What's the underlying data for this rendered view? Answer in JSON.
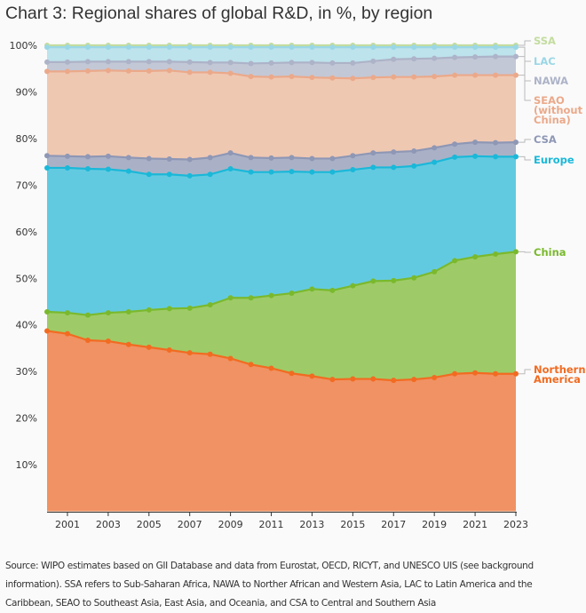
{
  "title": "Chart 3: Regional shares of global R&D, in %, by region",
  "source": "Source: WIPO estimates based on GII Database and data from Eurostat, OECD, RICYT, and UNESCO UIS (see background information). SSA refers to Sub-Saharan Africa, NAWA to Norther African and Western Asia, LAC to Latin America and the Caribbean, SEAO to Southeast Asia, East Asia, and Oceania, and CSA to Central and Southern Asia",
  "chart_data": {
    "type": "area",
    "stacked": true,
    "title": "Chart 3: Regional shares of global R&D, in %, by region",
    "xlabel": "",
    "ylabel": "",
    "ylim": [
      0,
      100
    ],
    "xlim": [
      2000,
      2023
    ],
    "y_ticks": [
      "10%",
      "20%",
      "30%",
      "40%",
      "50%",
      "60%",
      "70%",
      "80%",
      "90%",
      "100%"
    ],
    "x_ticks": [
      "2001",
      "2003",
      "2005",
      "2007",
      "2009",
      "2011",
      "2013",
      "2015",
      "2017",
      "2019",
      "2021",
      "2023"
    ],
    "x": [
      2000,
      2001,
      2002,
      2003,
      2004,
      2005,
      2006,
      2007,
      2008,
      2009,
      2010,
      2011,
      2012,
      2013,
      2014,
      2015,
      2016,
      2017,
      2018,
      2019,
      2020,
      2021,
      2022,
      2023
    ],
    "value_note": "cumulative stacked top of each region, %",
    "series": [
      {
        "name": "Northern America",
        "label": [
          "Northern",
          "America"
        ],
        "fill": "#f09263",
        "line": "#f26b21",
        "label_color": "#f26b21",
        "cumulative": [
          38.7,
          38.1,
          36.7,
          36.5,
          35.8,
          35.2,
          34.6,
          34.0,
          33.7,
          32.8,
          31.5,
          30.7,
          29.6,
          29.0,
          28.3,
          28.4,
          28.4,
          28.1,
          28.3,
          28.7,
          29.5,
          29.7,
          29.5,
          29.5
        ]
      },
      {
        "name": "China",
        "label": [
          "China"
        ],
        "fill": "#9ecb67",
        "line": "#7ab92d",
        "label_color": "#7ab92d",
        "cumulative": [
          42.8,
          42.6,
          42.1,
          42.6,
          42.8,
          43.2,
          43.5,
          43.6,
          44.3,
          45.8,
          45.8,
          46.3,
          46.8,
          47.7,
          47.4,
          48.4,
          49.4,
          49.5,
          50.1,
          51.4,
          53.8,
          54.6,
          55.2,
          55.7
        ]
      },
      {
        "name": "Europe",
        "label": [
          "Europe"
        ],
        "fill": "#62cae0",
        "line": "#1ab8d9",
        "label_color": "#1ab8d9",
        "cumulative": [
          73.7,
          73.7,
          73.5,
          73.4,
          73.0,
          72.3,
          72.3,
          72.0,
          72.3,
          73.5,
          72.8,
          72.8,
          72.9,
          72.8,
          72.8,
          73.3,
          73.8,
          73.8,
          74.1,
          74.9,
          76.0,
          76.2,
          76.1,
          76.1
        ]
      },
      {
        "name": "CSA",
        "label": [
          "CSA"
        ],
        "fill": "#aab1c6",
        "line": "#8e97b5",
        "label_color": "#8e97b5",
        "cumulative": [
          76.3,
          76.2,
          76.1,
          76.2,
          75.9,
          75.7,
          75.6,
          75.5,
          75.9,
          76.9,
          75.9,
          75.8,
          75.9,
          75.7,
          75.7,
          76.3,
          76.9,
          77.1,
          77.3,
          78.0,
          78.8,
          79.2,
          79.1,
          79.2
        ]
      },
      {
        "name": "SEAO (without China)",
        "label": [
          "SEAO",
          "(without",
          "China)"
        ],
        "fill": "#efc8b2",
        "line": "#eba98a",
        "label_color": "#eba98a",
        "cumulative": [
          94.4,
          94.4,
          94.5,
          94.6,
          94.5,
          94.5,
          94.6,
          94.2,
          94.2,
          94.0,
          93.3,
          93.2,
          93.3,
          93.1,
          93.0,
          92.9,
          93.1,
          93.2,
          93.2,
          93.3,
          93.6,
          93.6,
          93.6,
          93.6
        ]
      },
      {
        "name": "NAWA",
        "label": [
          "NAWA"
        ],
        "fill": "#c3c8d6",
        "line": "#adb3c8",
        "label_color": "#adb3c8",
        "cumulative": [
          96.4,
          96.4,
          96.5,
          96.5,
          96.5,
          96.5,
          96.5,
          96.4,
          96.3,
          96.3,
          96.1,
          96.2,
          96.3,
          96.3,
          96.2,
          96.2,
          96.6,
          97.0,
          97.1,
          97.2,
          97.4,
          97.5,
          97.6,
          97.6
        ]
      },
      {
        "name": "LAC",
        "label": [
          "LAC"
        ],
        "fill": "#bde3ec",
        "line": "#9ad7e6",
        "label_color": "#9ad7e6",
        "cumulative": [
          99.6,
          99.6,
          99.6,
          99.6,
          99.6,
          99.6,
          99.6,
          99.6,
          99.6,
          99.6,
          99.6,
          99.6,
          99.6,
          99.6,
          99.6,
          99.6,
          99.6,
          99.6,
          99.6,
          99.6,
          99.6,
          99.6,
          99.6,
          99.6
        ]
      },
      {
        "name": "SSA",
        "label": [
          "SSA"
        ],
        "fill": "#c8dfa6",
        "line": "#c3dc9f",
        "label_color": "#c3dc9f",
        "cumulative": [
          100,
          100,
          100,
          100,
          100,
          100,
          100,
          100,
          100,
          100,
          100,
          100,
          100,
          100,
          100,
          100,
          100,
          100,
          100,
          100,
          100,
          100,
          100,
          100
        ]
      }
    ]
  }
}
